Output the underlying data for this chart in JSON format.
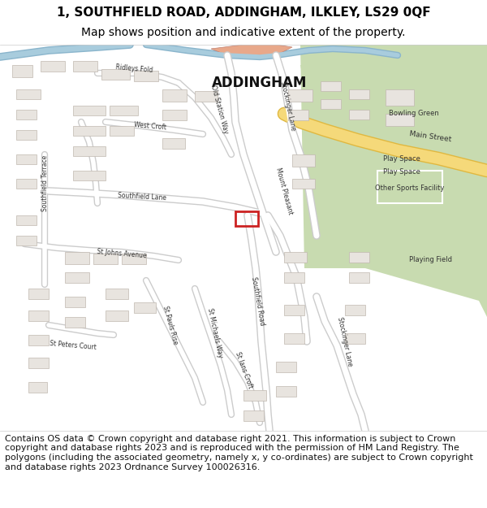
{
  "title_line1": "1, SOUTHFIELD ROAD, ADDINGHAM, ILKLEY, LS29 0QF",
  "title_line2": "Map shows position and indicative extent of the property.",
  "footer_text": "Contains OS data © Crown copyright and database right 2021. This information is subject to Crown copyright and database rights 2023 and is reproduced with the permission of HM Land Registry. The polygons (including the associated geometry, namely x, y co-ordinates) are subject to Crown copyright and database rights 2023 Ordnance Survey 100026316.",
  "map_bg": "#f0eeeb",
  "road_color": "#ffffff",
  "road_outline": "#cccccc",
  "main_road_color": "#f5d97a",
  "main_road_outline": "#e0b840",
  "green_area": "#c8dbb0",
  "building_color": "#e8e4df",
  "building_outline": "#c0b8b0",
  "blue_road": "#a8ccdd",
  "header_bg": "#ffffff",
  "footer_bg": "#ffffff",
  "title_fontsize": 11,
  "subtitle_fontsize": 10,
  "footer_fontsize": 8,
  "label_fontsize": 7,
  "street_label_fontsize": 5.5
}
